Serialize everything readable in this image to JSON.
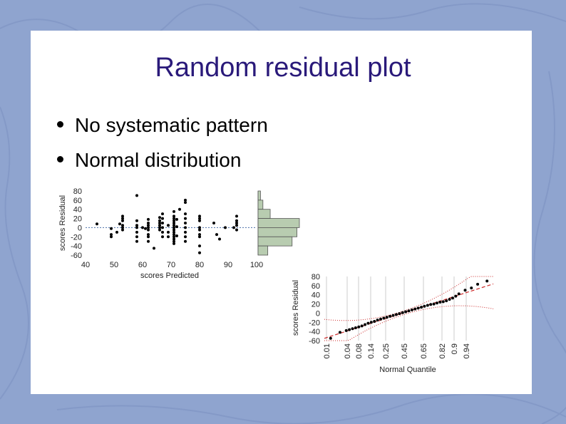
{
  "slide": {
    "title": "Random residual plot",
    "bullets": [
      "No systematic pattern",
      "Normal distribution"
    ]
  },
  "colors": {
    "background": "#8fa4cf",
    "title": "#2a1a7a",
    "histogram_fill": "#b8ccb0",
    "zero_line": "#4a6fa8",
    "fit_line": "#cc2a2a"
  },
  "chart_data": [
    {
      "type": "scatter",
      "xlabel": "scores Predicted",
      "ylabel": "scores Residual",
      "xlim": [
        40,
        100
      ],
      "ylim": [
        -60,
        80
      ],
      "x_ticks": [
        "40",
        "50",
        "60",
        "70",
        "80",
        "90",
        "100"
      ],
      "y_ticks": [
        "80",
        "60",
        "40",
        "20",
        "0",
        "-20",
        "-40",
        "-60"
      ],
      "reference_line_y": 0,
      "points": [
        [
          44,
          8
        ],
        [
          49,
          -2
        ],
        [
          49,
          -15
        ],
        [
          49,
          -20
        ],
        [
          51,
          -10
        ],
        [
          52,
          8
        ],
        [
          53,
          25
        ],
        [
          53,
          20
        ],
        [
          53,
          15
        ],
        [
          53,
          5
        ],
        [
          53,
          0
        ],
        [
          53,
          -5
        ],
        [
          58,
          70
        ],
        [
          58,
          15
        ],
        [
          58,
          5
        ],
        [
          58,
          0
        ],
        [
          58,
          -10
        ],
        [
          58,
          -20
        ],
        [
          58,
          -30
        ],
        [
          60,
          0
        ],
        [
          61,
          -2
        ],
        [
          62,
          18
        ],
        [
          62,
          10
        ],
        [
          62,
          5
        ],
        [
          62,
          0
        ],
        [
          62,
          -5
        ],
        [
          62,
          -15
        ],
        [
          62,
          -20
        ],
        [
          62,
          -30
        ],
        [
          64,
          -45
        ],
        [
          66,
          22
        ],
        [
          66,
          15
        ],
        [
          66,
          10
        ],
        [
          66,
          5
        ],
        [
          66,
          0
        ],
        [
          66,
          -5
        ],
        [
          67,
          30
        ],
        [
          67,
          20
        ],
        [
          67,
          10
        ],
        [
          67,
          0
        ],
        [
          67,
          -10
        ],
        [
          67,
          -20
        ],
        [
          69,
          5
        ],
        [
          69,
          -10
        ],
        [
          69,
          -20
        ],
        [
          71,
          35
        ],
        [
          71,
          25
        ],
        [
          71,
          20
        ],
        [
          71,
          15
        ],
        [
          71,
          10
        ],
        [
          71,
          5
        ],
        [
          71,
          0
        ],
        [
          71,
          -5
        ],
        [
          71,
          -10
        ],
        [
          71,
          -15
        ],
        [
          71,
          -20
        ],
        [
          71,
          -25
        ],
        [
          71,
          -30
        ],
        [
          71,
          -35
        ],
        [
          72,
          18
        ],
        [
          72,
          2
        ],
        [
          72,
          -18
        ],
        [
          73,
          40
        ],
        [
          75,
          60
        ],
        [
          75,
          55
        ],
        [
          75,
          30
        ],
        [
          75,
          20
        ],
        [
          75,
          10
        ],
        [
          75,
          0
        ],
        [
          75,
          -10
        ],
        [
          75,
          -20
        ],
        [
          75,
          -30
        ],
        [
          80,
          25
        ],
        [
          80,
          20
        ],
        [
          80,
          15
        ],
        [
          80,
          0
        ],
        [
          80,
          -5
        ],
        [
          80,
          -15
        ],
        [
          80,
          -20
        ],
        [
          80,
          -40
        ],
        [
          80,
          -55
        ],
        [
          85,
          10
        ],
        [
          86,
          -15
        ],
        [
          87,
          -25
        ],
        [
          89,
          0
        ],
        [
          92,
          0
        ],
        [
          93,
          15
        ],
        [
          93,
          10
        ],
        [
          93,
          5
        ],
        [
          93,
          25
        ],
        [
          93,
          -5
        ]
      ],
      "marginal_histogram": {
        "bins": [
          [
            80,
            60
          ],
          [
            60,
            40
          ],
          [
            40,
            20
          ],
          [
            20,
            0
          ],
          [
            0,
            -20
          ],
          [
            -20,
            -40
          ],
          [
            -40,
            -60
          ]
        ],
        "counts": [
          1,
          2,
          5,
          17,
          16,
          14,
          4
        ]
      }
    },
    {
      "type": "scatter",
      "xlabel": "Normal Quantile",
      "ylabel": "scores Residual",
      "ylim": [
        -60,
        80
      ],
      "x_ticks": [
        "0.01",
        "0.04",
        "0.08",
        "0.14",
        "0.25",
        "0.45",
        "0.65",
        "0.82",
        "0.9",
        "0.94"
      ],
      "y_ticks": [
        "80",
        "60",
        "40",
        "20",
        "0",
        "-20",
        "-40",
        "-60"
      ],
      "points": [
        [
          -2.3,
          -55
        ],
        [
          -2.0,
          -42
        ],
        [
          -1.8,
          -38
        ],
        [
          -1.7,
          -36
        ],
        [
          -1.6,
          -34
        ],
        [
          -1.5,
          -32
        ],
        [
          -1.4,
          -30
        ],
        [
          -1.3,
          -28
        ],
        [
          -1.2,
          -25
        ],
        [
          -1.1,
          -22
        ],
        [
          -1.0,
          -20
        ],
        [
          -0.9,
          -18
        ],
        [
          -0.8,
          -15
        ],
        [
          -0.7,
          -13
        ],
        [
          -0.6,
          -11
        ],
        [
          -0.5,
          -9
        ],
        [
          -0.4,
          -7
        ],
        [
          -0.3,
          -5
        ],
        [
          -0.2,
          -3
        ],
        [
          -0.1,
          -1
        ],
        [
          0.0,
          1
        ],
        [
          0.1,
          3
        ],
        [
          0.2,
          5
        ],
        [
          0.3,
          7
        ],
        [
          0.4,
          9
        ],
        [
          0.5,
          11
        ],
        [
          0.6,
          13
        ],
        [
          0.7,
          15
        ],
        [
          0.8,
          17
        ],
        [
          0.9,
          19
        ],
        [
          1.0,
          20
        ],
        [
          1.1,
          22
        ],
        [
          1.2,
          24
        ],
        [
          1.3,
          25
        ],
        [
          1.4,
          27
        ],
        [
          1.5,
          30
        ],
        [
          1.6,
          33
        ],
        [
          1.7,
          37
        ],
        [
          1.8,
          42
        ],
        [
          2.0,
          50
        ],
        [
          2.2,
          55
        ],
        [
          2.4,
          63
        ],
        [
          2.7,
          70
        ]
      ],
      "fit_line": {
        "intercept": 0,
        "slope": 22
      },
      "x_range": [
        -2.5,
        2.9
      ]
    }
  ]
}
